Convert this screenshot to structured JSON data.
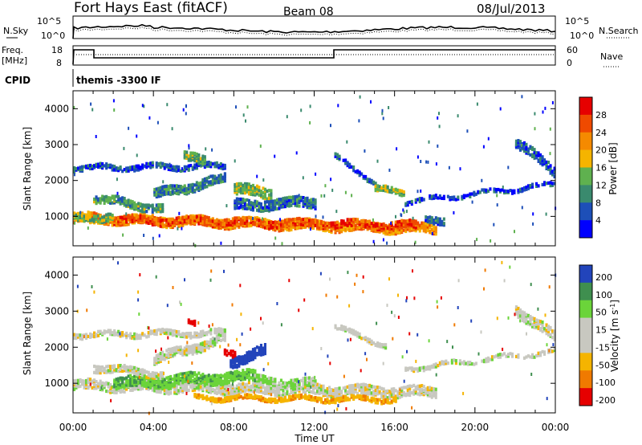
{
  "header": {
    "title": "Fort Hays East (fitACF)",
    "beam": "Beam 08",
    "date": "08/Jul/2013"
  },
  "noise_panel": {
    "left_label": "N.Sky",
    "right_label": "N.Search",
    "left_ticks": [
      "10^5",
      "10^0"
    ],
    "right_ticks": [
      "10^5",
      "10^0"
    ]
  },
  "freq_panel": {
    "left_label_1": "Freq.",
    "left_label_2": "[MHz]",
    "right_label": "Nave",
    "left_ticks": [
      "18",
      "8"
    ],
    "right_ticks": [
      "60",
      "0"
    ]
  },
  "cpid_panel": {
    "label": "CPID",
    "program": "themis -3300 IF"
  },
  "colors": {
    "power_scale": [
      "#0000ff",
      "#1d4fb8",
      "#3a8a6e",
      "#5fb14f",
      "#f5b400",
      "#f58a00",
      "#ef4a00",
      "#e60000"
    ],
    "velocity_scale": [
      "#e60000",
      "#f07a00",
      "#f5b400",
      "#c8c8c0",
      "#c8c8c0",
      "#6bd43a",
      "#3f8f4f",
      "#2244bb"
    ]
  },
  "chart_data": [
    {
      "type": "heatmap",
      "title": "",
      "xlabel": "",
      "ylabel": "Slant Range [km]",
      "x_ticks": [
        "00:00",
        "04:00",
        "08:00",
        "12:00",
        "16:00",
        "20:00",
        "00:00"
      ],
      "x_range_hours": [
        0,
        24
      ],
      "y_ticks": [
        "1000",
        "2000",
        "3000",
        "4000"
      ],
      "y_range_km": [
        180,
        4500
      ],
      "colorbar_label": "Power [dB]",
      "colorbar_ticks": [
        "28",
        "24",
        "20",
        "16",
        "12",
        "8",
        "4"
      ],
      "colorbar_range": [
        0,
        32
      ],
      "bands": [
        {
          "start": 0.0,
          "end": 18.0,
          "range_start": 1000,
          "range_end": 700,
          "width": 260,
          "value": 22
        },
        {
          "start": 2.0,
          "end": 17.0,
          "range_start": 950,
          "range_end": 800,
          "width": 200,
          "value": 26
        },
        {
          "start": 0.0,
          "end": 2.0,
          "range_start": 1000,
          "range_end": 1050,
          "width": 220,
          "value": 14
        },
        {
          "start": 1.0,
          "end": 4.5,
          "range_start": 1550,
          "range_end": 1250,
          "width": 220,
          "value": 12
        },
        {
          "start": 4.0,
          "end": 7.5,
          "range_start": 1650,
          "range_end": 2100,
          "width": 260,
          "value": 9
        },
        {
          "start": 0.0,
          "end": 7.5,
          "range_start": 2400,
          "range_end": 2450,
          "width": 150,
          "value": 6
        },
        {
          "start": 5.5,
          "end": 6.5,
          "range_start": 2750,
          "range_end": 2550,
          "width": 250,
          "value": 13
        },
        {
          "start": 8.0,
          "end": 9.8,
          "range_start": 1800,
          "range_end": 1700,
          "width": 300,
          "value": 14
        },
        {
          "start": 8.0,
          "end": 12.0,
          "range_start": 1350,
          "range_end": 1450,
          "width": 280,
          "value": 8
        },
        {
          "start": 13.0,
          "end": 15.0,
          "range_start": 2700,
          "range_end": 2000,
          "width": 120,
          "value": 5
        },
        {
          "start": 15.0,
          "end": 16.5,
          "range_start": 1800,
          "range_end": 1700,
          "width": 160,
          "value": 14
        },
        {
          "start": 16.5,
          "end": 24.0,
          "range_start": 1450,
          "range_end": 1950,
          "width": 110,
          "value": 5
        },
        {
          "start": 22.0,
          "end": 24.0,
          "range_start": 3100,
          "range_end": 2300,
          "width": 280,
          "value": 7
        },
        {
          "start": 17.5,
          "end": 18.5,
          "range_start": 1000,
          "range_end": 950,
          "width": 200,
          "value": 8
        }
      ]
    },
    {
      "type": "heatmap",
      "title": "",
      "xlabel": "Time UT",
      "ylabel": "Slant Range [km]",
      "x_ticks": [
        "00:00",
        "04:00",
        "08:00",
        "12:00",
        "16:00",
        "20:00",
        "00:00"
      ],
      "x_range_hours": [
        0,
        24
      ],
      "y_ticks": [
        "1000",
        "2000",
        "3000",
        "4000"
      ],
      "y_range_km": [
        180,
        4500
      ],
      "colorbar_label": "Velocity [m s^-1]",
      "colorbar_ticks": [
        "200",
        "100",
        "50",
        "15",
        "-15",
        "-50",
        "-100",
        "-200"
      ],
      "colorbar_range": [
        -250,
        250
      ],
      "bands": [
        {
          "start": 0.0,
          "end": 18.0,
          "range_start": 1000,
          "range_end": 800,
          "width": 280,
          "value": 0
        },
        {
          "start": 2.0,
          "end": 9.0,
          "range_start": 1050,
          "range_end": 1250,
          "width": 300,
          "value": 40
        },
        {
          "start": 1.0,
          "end": 4.5,
          "range_start": 1500,
          "range_end": 1300,
          "width": 200,
          "value": 0
        },
        {
          "start": 4.0,
          "end": 7.5,
          "range_start": 1700,
          "range_end": 2300,
          "width": 250,
          "value": 0
        },
        {
          "start": 0.0,
          "end": 7.5,
          "range_start": 2400,
          "range_end": 2450,
          "width": 150,
          "value": 0
        },
        {
          "start": 7.8,
          "end": 9.5,
          "range_start": 1650,
          "range_end": 1950,
          "width": 300,
          "value": 120
        },
        {
          "start": 9.0,
          "end": 12.0,
          "range_start": 1150,
          "range_end": 1050,
          "width": 200,
          "value": 20
        },
        {
          "start": 6.0,
          "end": 16.0,
          "range_start": 650,
          "range_end": 600,
          "width": 120,
          "value": -40
        },
        {
          "start": 13.0,
          "end": 15.5,
          "range_start": 2600,
          "range_end": 2100,
          "width": 120,
          "value": 0
        },
        {
          "start": 16.5,
          "end": 24.0,
          "range_start": 1450,
          "range_end": 1950,
          "width": 110,
          "value": 0
        },
        {
          "start": 22.0,
          "end": 24.0,
          "range_start": 3100,
          "range_end": 2300,
          "width": 280,
          "value": 0
        },
        {
          "start": 5.7,
          "end": 6.0,
          "range_start": 2850,
          "range_end": 2750,
          "width": 150,
          "value": -220
        },
        {
          "start": 7.5,
          "end": 8.0,
          "range_start": 2000,
          "range_end": 1900,
          "width": 200,
          "value": -120
        }
      ]
    }
  ]
}
